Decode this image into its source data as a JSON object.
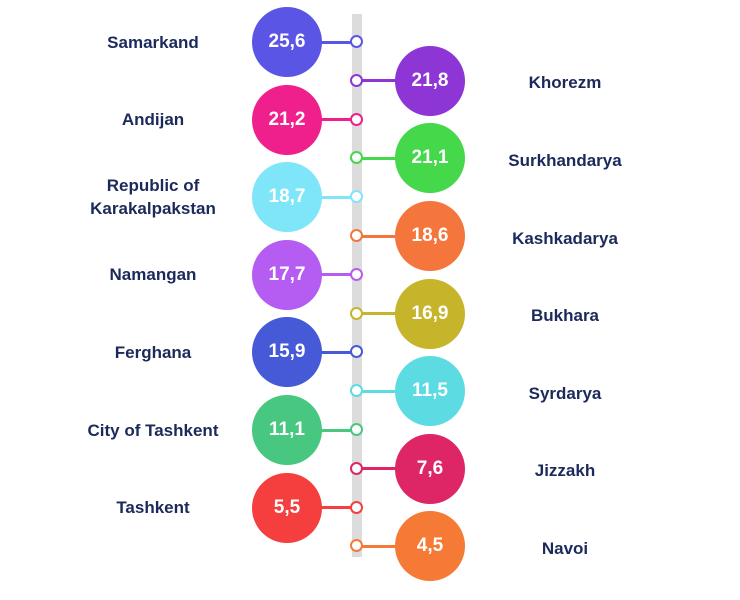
{
  "chart_data": {
    "type": "bubble-timeline",
    "title": "",
    "xlabel": "",
    "ylabel": "",
    "points": [
      {
        "region": "Samarkand",
        "value": "25,6",
        "side": "left",
        "color": "#5b55e6"
      },
      {
        "region": "Khorezm",
        "value": "21,8",
        "side": "right",
        "color": "#8e35d6"
      },
      {
        "region": "Andijan",
        "value": "21,2",
        "side": "left",
        "color": "#ef1f8c"
      },
      {
        "region": "Surkhandarya",
        "value": "21,1",
        "side": "right",
        "color": "#44d84a"
      },
      {
        "region": "Republic of Karakalpakstan",
        "value": "18,7",
        "side": "left",
        "color": "#7fe5f8"
      },
      {
        "region": "Kashkadarya",
        "value": "18,6",
        "side": "right",
        "color": "#f5763d"
      },
      {
        "region": "Namangan",
        "value": "17,7",
        "side": "left",
        "color": "#b55df2"
      },
      {
        "region": "Bukhara",
        "value": "16,9",
        "side": "right",
        "color": "#c6b52a"
      },
      {
        "region": "Ferghana",
        "value": "15,9",
        "side": "left",
        "color": "#4659d6"
      },
      {
        "region": "Syrdarya",
        "value": "11,5",
        "side": "right",
        "color": "#5ddbe2"
      },
      {
        "region": "City of Tashkent",
        "value": "11,1",
        "side": "left",
        "color": "#47c77f"
      },
      {
        "region": "Jizzakh",
        "value": "7,6",
        "side": "right",
        "color": "#de2666"
      },
      {
        "region": "Tashkent",
        "value": "5,5",
        "side": "left",
        "color": "#f53e3e"
      },
      {
        "region": "Navoi",
        "value": "4,5",
        "side": "right",
        "color": "#f57a36"
      }
    ],
    "accent_line_color": "#dcdcdc"
  }
}
